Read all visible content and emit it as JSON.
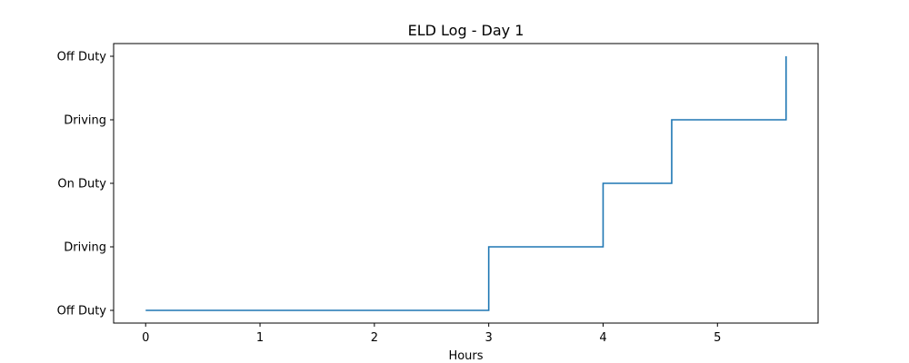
{
  "chart_data": {
    "type": "line",
    "step": "post",
    "title": "ELD Log - Day 1",
    "xlabel": "Hours",
    "ylabel": "",
    "xlim": [
      -0.28,
      5.88
    ],
    "ylim": [
      -0.2,
      4.2
    ],
    "xticks": [
      0,
      1,
      2,
      3,
      4,
      5
    ],
    "xtick_labels": [
      "0",
      "1",
      "2",
      "3",
      "4",
      "5"
    ],
    "yticks": [
      0,
      1,
      2,
      3,
      4
    ],
    "ytick_labels": [
      "Off Duty",
      "Driving",
      "On Duty",
      "Driving",
      "Off Duty"
    ],
    "grid": false,
    "series": [
      {
        "color": "#1f77b4",
        "x": [
          0,
          3,
          4,
          4.6,
          5.6
        ],
        "y": [
          0,
          1,
          2,
          3,
          4
        ]
      }
    ]
  }
}
